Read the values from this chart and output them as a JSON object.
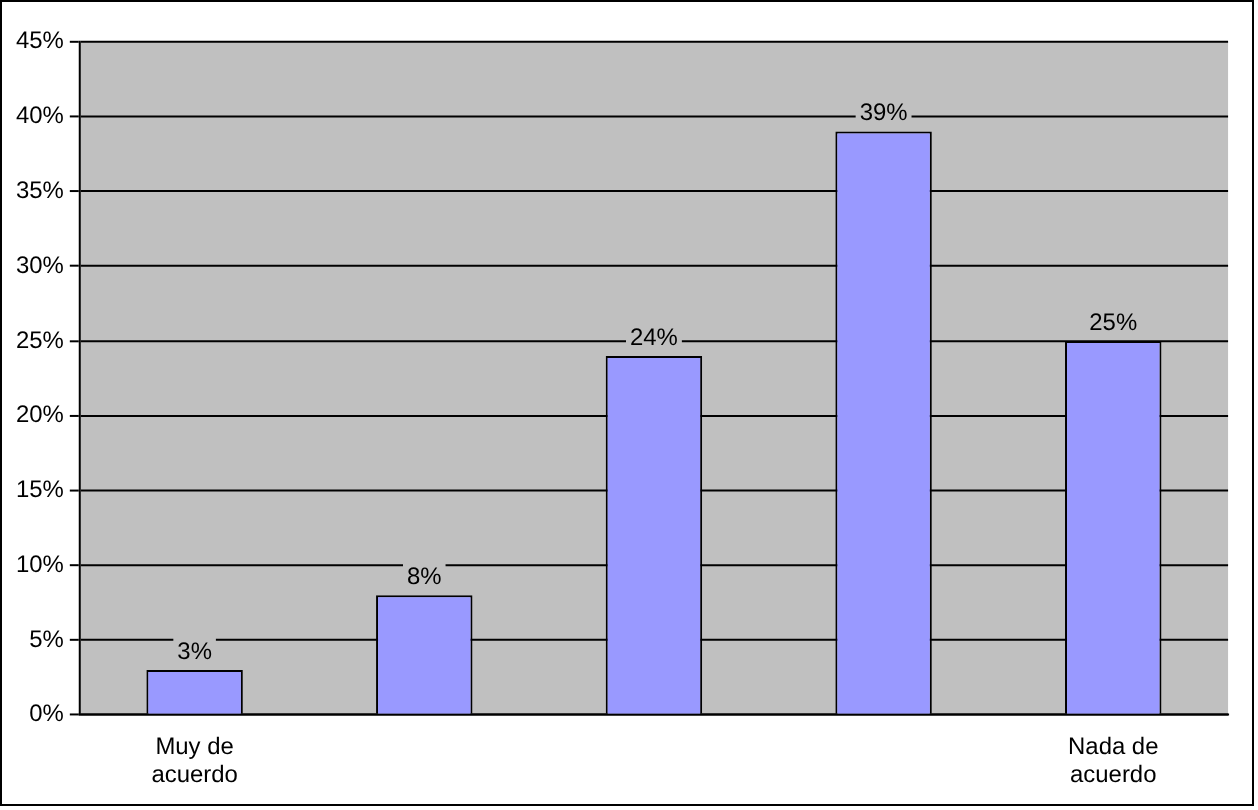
{
  "chart_data": {
    "type": "bar",
    "categories": [
      "Muy de acuerdo",
      null,
      null,
      null,
      "Nada de acuerdo"
    ],
    "values": [
      3,
      8,
      24,
      39,
      25
    ],
    "value_labels": [
      "3%",
      "8%",
      "24%",
      "39%",
      "25%"
    ],
    "color": "#9999ff",
    "ylim": [
      0,
      45
    ],
    "yticks": [
      {
        "value": 0,
        "label": "0%"
      },
      {
        "value": 5,
        "label": "5%"
      },
      {
        "value": 10,
        "label": "10%"
      },
      {
        "value": 15,
        "label": "15%"
      },
      {
        "value": 20,
        "label": "20%"
      },
      {
        "value": 25,
        "label": "25%"
      },
      {
        "value": 30,
        "label": "30%"
      },
      {
        "value": 35,
        "label": "35%"
      },
      {
        "value": 40,
        "label": "40%"
      },
      {
        "value": 45,
        "label": "45%"
      }
    ],
    "grid": "y",
    "legend": false
  }
}
